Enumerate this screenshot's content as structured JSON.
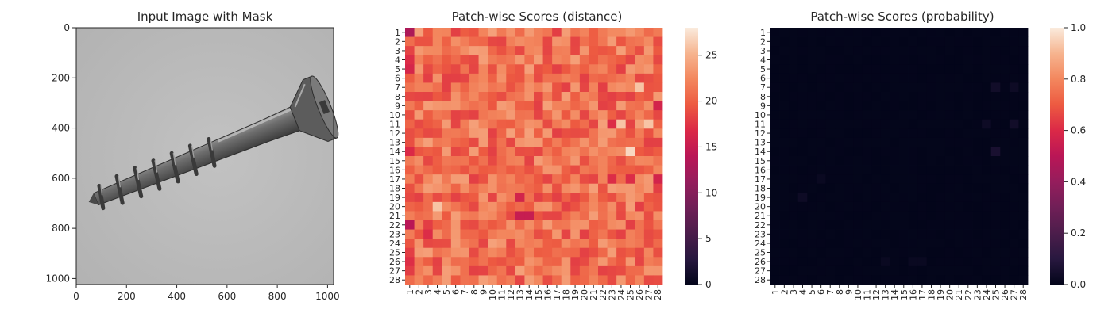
{
  "chart_data": [
    {
      "type": "image",
      "title": "Input Image with Mask",
      "xlim": [
        0,
        1024
      ],
      "ylim": [
        1024,
        0
      ],
      "xticks": [
        0,
        200,
        400,
        600,
        800,
        1000
      ],
      "yticks": [
        0,
        200,
        400,
        600,
        800,
        1000
      ],
      "content": "grayscale photo of a screw on a light gray background"
    },
    {
      "type": "heatmap",
      "title": "Patch-wise Scores (distance)",
      "xticks": [
        "1",
        "2",
        "3",
        "4",
        "5",
        "6",
        "7",
        "8",
        "9",
        "10",
        "11",
        "12",
        "13",
        "14",
        "15",
        "16",
        "17",
        "18",
        "19",
        "20",
        "21",
        "22",
        "23",
        "24",
        "25",
        "26",
        "27",
        "28"
      ],
      "yticks": [
        "1",
        "2",
        "3",
        "4",
        "5",
        "6",
        "7",
        "8",
        "9",
        "10",
        "11",
        "12",
        "13",
        "14",
        "15",
        "16",
        "17",
        "18",
        "19",
        "20",
        "21",
        "22",
        "23",
        "24",
        "25",
        "26",
        "27",
        "28"
      ],
      "colorbar": {
        "min": 0,
        "max": 28,
        "ticks": [
          0,
          5,
          10,
          15,
          20,
          25
        ]
      },
      "colormap": "rocket",
      "typical_value": 21,
      "value_range_estimate": [
        12,
        27
      ],
      "low_value_cells_estimate": [
        {
          "row": 1,
          "col": 1,
          "value": 13
        },
        {
          "row": 22,
          "col": 1,
          "value": 14
        },
        {
          "row": 21,
          "col": 13,
          "value": 15
        },
        {
          "row": 21,
          "col": 14,
          "value": 15
        },
        {
          "row": 19,
          "col": 13,
          "value": 16
        },
        {
          "row": 9,
          "col": 28,
          "value": 16
        },
        {
          "row": 17,
          "col": 28,
          "value": 16
        },
        {
          "row": 23,
          "col": 3,
          "value": 17
        },
        {
          "row": 11,
          "col": 23,
          "value": 17
        },
        {
          "row": 17,
          "col": 23,
          "value": 17
        },
        {
          "row": 17,
          "col": 25,
          "value": 17
        }
      ],
      "high_value_cells_estimate": [
        {
          "row": 14,
          "col": 25,
          "value": 27
        },
        {
          "row": 11,
          "col": 27,
          "value": 26
        },
        {
          "row": 7,
          "col": 26,
          "value": 26
        },
        {
          "row": 11,
          "col": 24,
          "value": 26
        },
        {
          "row": 20,
          "col": 4,
          "value": 26
        }
      ]
    },
    {
      "type": "heatmap",
      "title": "Patch-wise Scores (probability)",
      "xticks": [
        "1",
        "2",
        "3",
        "4",
        "5",
        "6",
        "7",
        "8",
        "9",
        "10",
        "11",
        "12",
        "13",
        "14",
        "15",
        "16",
        "17",
        "18",
        "19",
        "20",
        "21",
        "22",
        "23",
        "24",
        "25",
        "26",
        "27",
        "28"
      ],
      "yticks": [
        "1",
        "2",
        "3",
        "4",
        "5",
        "6",
        "7",
        "8",
        "9",
        "10",
        "11",
        "12",
        "13",
        "14",
        "15",
        "16",
        "17",
        "18",
        "19",
        "20",
        "21",
        "22",
        "23",
        "24",
        "25",
        "26",
        "27",
        "28"
      ],
      "colorbar": {
        "min": 0.0,
        "max": 1.0,
        "ticks": [
          "0.0",
          "0.2",
          "0.4",
          "0.6",
          "0.8",
          "1.0"
        ]
      },
      "colormap": "rocket",
      "typical_value": 0.0,
      "highlighted_cells_estimate": [
        {
          "row": 14,
          "col": 25,
          "value": 0.06
        },
        {
          "row": 7,
          "col": 25,
          "value": 0.04
        },
        {
          "row": 7,
          "col": 27,
          "value": 0.03
        },
        {
          "row": 11,
          "col": 27,
          "value": 0.04
        },
        {
          "row": 11,
          "col": 24,
          "value": 0.03
        },
        {
          "row": 19,
          "col": 4,
          "value": 0.03
        },
        {
          "row": 17,
          "col": 6,
          "value": 0.02
        },
        {
          "row": 26,
          "col": 16,
          "value": 0.02
        },
        {
          "row": 26,
          "col": 17,
          "value": 0.02
        },
        {
          "row": 26,
          "col": 13,
          "value": 0.02
        }
      ]
    }
  ]
}
